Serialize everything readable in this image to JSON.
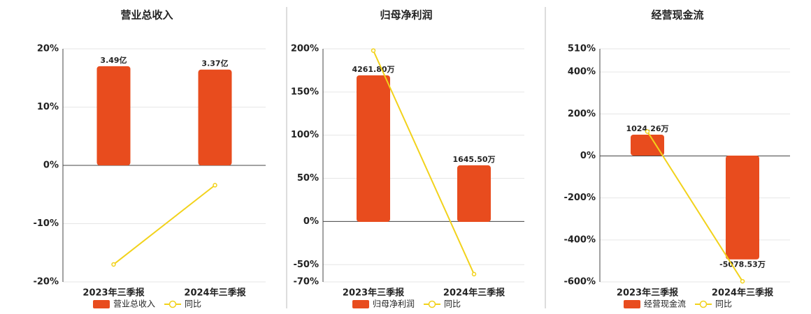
{
  "chart_data": [
    {
      "type": "bar",
      "title": "营业总收入",
      "categories": [
        "2023年三季报",
        "2024年三季报"
      ],
      "series": [
        {
          "name": "营业总收入",
          "color": "#e84c1e",
          "axis": "y2",
          "values": [
            3.49,
            3.37
          ],
          "value_labels": [
            "3.49亿",
            "3.37亿"
          ]
        },
        {
          "name": "同比",
          "type": "line",
          "color": "#f2d21b",
          "values": [
            -17.0,
            -3.4
          ]
        }
      ],
      "ylim": [
        -20,
        20
      ],
      "yticks": [
        {
          "value": 20,
          "label": "20%"
        },
        {
          "value": 10,
          "label": "10%"
        },
        {
          "value": 0,
          "label": "0%"
        },
        {
          "value": -10,
          "label": "-10%"
        },
        {
          "value": -20,
          "label": "-20%"
        }
      ],
      "y2lim": [
        -4.1,
        4.1
      ],
      "grid": true
    },
    {
      "type": "bar",
      "title": "归母净利润",
      "categories": [
        "2023年三季报",
        "2024年三季报"
      ],
      "series": [
        {
          "name": "归母净利润",
          "color": "#e84c1e",
          "axis": "y2",
          "values": [
            4261.8,
            1645.5
          ],
          "value_labels": [
            "4261.80万",
            "1645.50万"
          ]
        },
        {
          "name": "同比",
          "type": "line",
          "color": "#f2d21b",
          "values": [
            198,
            -61
          ]
        }
      ],
      "ylim": [
        -70,
        200
      ],
      "yticks": [
        {
          "value": 200,
          "label": "200%"
        },
        {
          "value": 150,
          "label": "150%"
        },
        {
          "value": 100,
          "label": "100%"
        },
        {
          "value": 50,
          "label": "50%"
        },
        {
          "value": 0,
          "label": "0%"
        },
        {
          "value": -50,
          "label": "-50%"
        },
        {
          "value": -70,
          "label": "-70%"
        }
      ],
      "y2lim": [
        -1745,
        5033
      ],
      "grid": true
    },
    {
      "type": "bar",
      "title": "经营现金流",
      "categories": [
        "2023年三季报",
        "2024年三季报"
      ],
      "series": [
        {
          "name": "经营现金流",
          "color": "#e84c1e",
          "axis": "y2",
          "values": [
            1024.26,
            -5078.53
          ],
          "value_labels": [
            "1024.26万",
            "-5078.53万"
          ]
        },
        {
          "name": "同比",
          "type": "line",
          "color": "#f2d21b",
          "values": [
            116,
            -597
          ]
        }
      ],
      "ylim": [
        -600,
        510
      ],
      "yticks": [
        {
          "value": 510,
          "label": "510%"
        },
        {
          "value": 400,
          "label": "400%"
        },
        {
          "value": 200,
          "label": "200%"
        },
        {
          "value": 0,
          "label": "0%"
        },
        {
          "value": -200,
          "label": "-200%"
        },
        {
          "value": -400,
          "label": "-400%"
        },
        {
          "value": -600,
          "label": "-600%"
        }
      ],
      "y2lim": [
        -6180,
        5224
      ],
      "grid": true
    }
  ]
}
